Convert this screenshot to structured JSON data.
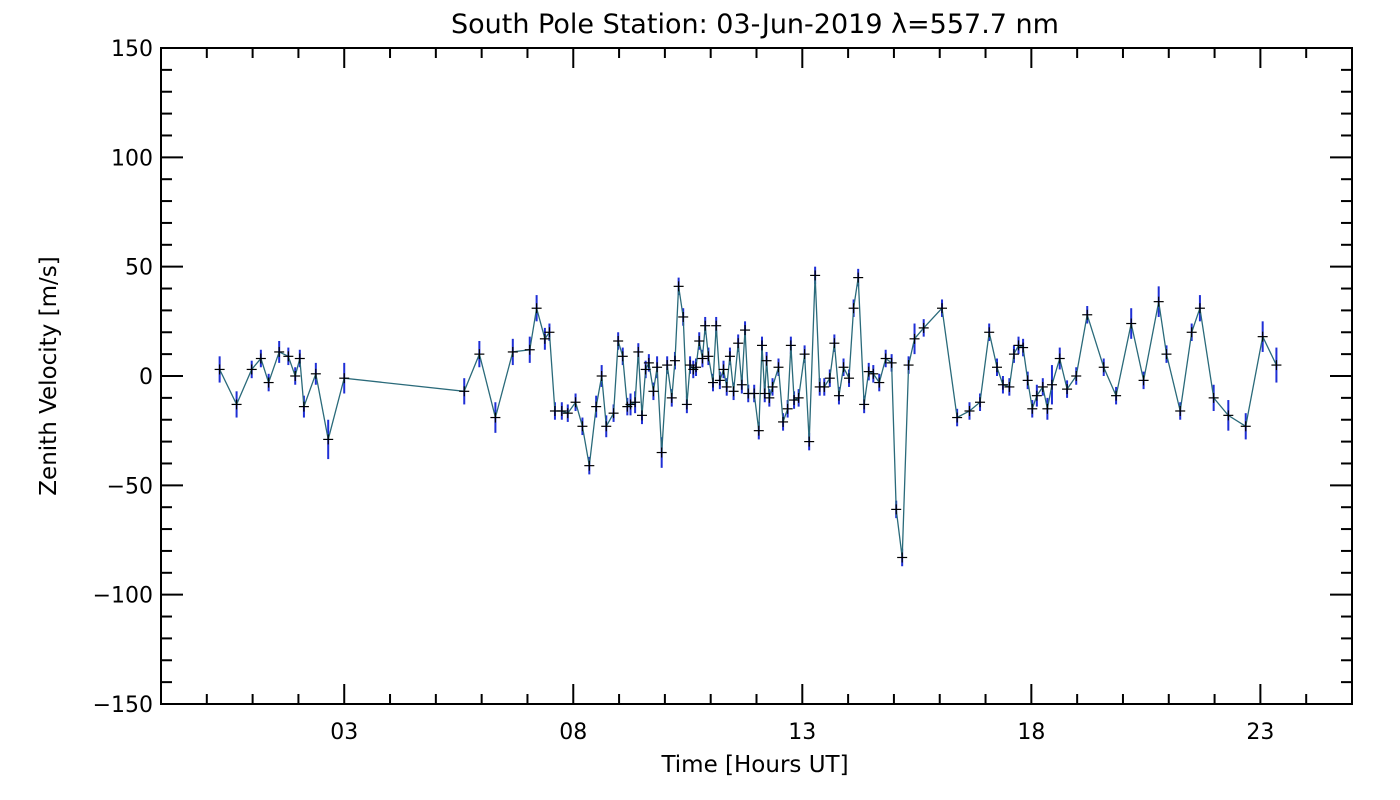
{
  "chart_data": {
    "type": "line",
    "title": "South Pole Station: 03-Jun-2019 λ=557.7 nm",
    "xlabel": "Time [Hours UT]",
    "ylabel": "Zenith Velocity [m/s]",
    "xlim": [
      -1,
      25
    ],
    "ylim": [
      -150,
      150
    ],
    "xticks": [
      3,
      8,
      13,
      18,
      23
    ],
    "xtick_labels": [
      "03",
      "08",
      "13",
      "18",
      "23"
    ],
    "yticks": [
      -150,
      -100,
      -50,
      0,
      50,
      100,
      150
    ],
    "ytick_labels": [
      "−150",
      "−100",
      "−50",
      "0",
      "50",
      "100",
      "150"
    ],
    "grid": false,
    "colors": {
      "line": "#2a6a7a",
      "marker": "#000000",
      "errorbar": "#1f2fd6"
    },
    "series": [
      {
        "name": "Zenith Velocity",
        "x": [
          0.28,
          0.65,
          0.98,
          1.18,
          1.35,
          1.58,
          1.78,
          1.93,
          2.03,
          2.12,
          2.38,
          2.65,
          3.0,
          5.62,
          5.95,
          6.3,
          6.68,
          7.05,
          7.2,
          7.38,
          7.48,
          7.6,
          7.75,
          7.88,
          8.05,
          8.2,
          8.35,
          8.5,
          8.62,
          8.72,
          8.88,
          8.98,
          9.08,
          9.18,
          9.25,
          9.35,
          9.42,
          9.5,
          9.58,
          9.65,
          9.75,
          9.83,
          9.93,
          10.05,
          10.15,
          10.22,
          10.3,
          10.4,
          10.48,
          10.55,
          10.62,
          10.68,
          10.75,
          10.82,
          10.88,
          10.95,
          11.05,
          11.12,
          11.2,
          11.28,
          11.35,
          11.42,
          11.5,
          11.6,
          11.68,
          11.75,
          11.82,
          11.95,
          12.05,
          12.12,
          12.18,
          12.22,
          12.28,
          12.35,
          12.48,
          12.58,
          12.68,
          12.75,
          12.82,
          12.92,
          13.05,
          13.15,
          13.28,
          13.38,
          13.48,
          13.6,
          13.7,
          13.8,
          13.9,
          14.02,
          14.12,
          14.22,
          14.35,
          14.45,
          14.55,
          14.68,
          14.82,
          14.95,
          15.05,
          15.18,
          15.32,
          15.45,
          15.65,
          16.05,
          16.38,
          16.65,
          16.88,
          17.08,
          17.25,
          17.38,
          17.52,
          17.62,
          17.72,
          17.82,
          17.92,
          18.02,
          18.12,
          18.25,
          18.35,
          18.45,
          18.62,
          18.78,
          18.98,
          19.22,
          19.58,
          19.85,
          20.18,
          20.45,
          20.78,
          20.95,
          21.25,
          21.5,
          21.68,
          21.98,
          22.3,
          22.68,
          23.05,
          23.35
        ],
        "values": [
          3,
          -13,
          3,
          8,
          -3,
          11,
          9,
          0,
          8,
          -14,
          1,
          -29,
          -1,
          -7,
          10,
          -19,
          11,
          12,
          31,
          17,
          20,
          -16,
          -16,
          -17,
          -12,
          -23,
          -41,
          -14,
          0,
          -23,
          -17,
          16,
          9,
          -14,
          -13,
          -12,
          11,
          -18,
          3,
          6,
          -7,
          4,
          -35,
          5,
          -10,
          7,
          41,
          27,
          -13,
          5,
          3,
          4,
          16,
          8,
          23,
          9,
          -3,
          23,
          -2,
          3,
          -5,
          9,
          -7,
          15,
          -4,
          21,
          -8,
          -8,
          -25,
          14,
          -8,
          7,
          -10,
          -5,
          4,
          -21,
          -15,
          14,
          -11,
          -10,
          10,
          -30,
          46,
          -5,
          -5,
          -1,
          15,
          -9,
          4,
          -1,
          31,
          45,
          -13,
          2,
          1,
          -3,
          8,
          6,
          -61,
          -83,
          5,
          17,
          22,
          31,
          -19,
          -16,
          -12,
          20,
          4,
          -4,
          -5,
          10,
          14,
          13,
          -2,
          -15,
          -9,
          -5,
          -15,
          -4,
          8,
          -6,
          0,
          28,
          4,
          -9,
          24,
          -2,
          34,
          10,
          -16,
          20,
          31,
          -10,
          -18,
          -23,
          18,
          5
        ],
        "errors": [
          6,
          6,
          4,
          4,
          4,
          5,
          4,
          4,
          4,
          5,
          5,
          9,
          7,
          6,
          6,
          7,
          6,
          6,
          6,
          5,
          4,
          4,
          4,
          4,
          4,
          4,
          4,
          5,
          5,
          5,
          4,
          4,
          4,
          4,
          5,
          5,
          4,
          4,
          4,
          4,
          4,
          5,
          7,
          4,
          4,
          4,
          4,
          4,
          4,
          4,
          4,
          4,
          4,
          4,
          4,
          4,
          4,
          4,
          4,
          4,
          4,
          4,
          4,
          4,
          4,
          4,
          4,
          4,
          4,
          4,
          4,
          4,
          4,
          4,
          4,
          4,
          4,
          4,
          4,
          4,
          4,
          4,
          4,
          4,
          4,
          4,
          4,
          4,
          4,
          4,
          4,
          4,
          4,
          4,
          4,
          4,
          4,
          4,
          4,
          4,
          4,
          7,
          4,
          4,
          4,
          4,
          4,
          4,
          4,
          4,
          4,
          4,
          4,
          4,
          4,
          4,
          5,
          4,
          5,
          9,
          5,
          4,
          4,
          4,
          4,
          4,
          7,
          4,
          7,
          4,
          4,
          4,
          6,
          6,
          7,
          6,
          7,
          8
        ]
      }
    ]
  }
}
